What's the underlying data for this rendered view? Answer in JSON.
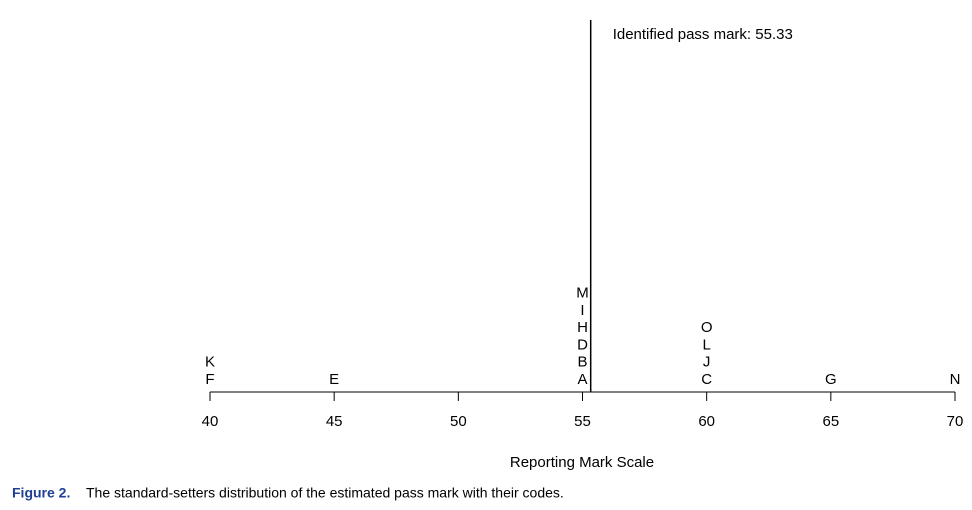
{
  "chart_data": {
    "type": "letterplot",
    "x": [
      40,
      40,
      45,
      55,
      55,
      55,
      55,
      55,
      55,
      60,
      60,
      60,
      60,
      65,
      70
    ],
    "labels": [
      "F",
      "K",
      "E",
      "A",
      "B",
      "D",
      "H",
      "I",
      "M",
      "C",
      "J",
      "L",
      "O",
      "G",
      "N"
    ],
    "xlim": [
      40,
      70
    ],
    "xticks": [
      40,
      45,
      50,
      55,
      60,
      65,
      70
    ],
    "xlabel": "Reporting Mark Scale",
    "reference_line": {
      "value": 55.33,
      "label": "Identified pass mark: 55.33"
    },
    "color": "#000000"
  },
  "caption": {
    "label": "Figure 2.",
    "text": "The standard-setters distribution of the estimated pass mark with their codes."
  }
}
